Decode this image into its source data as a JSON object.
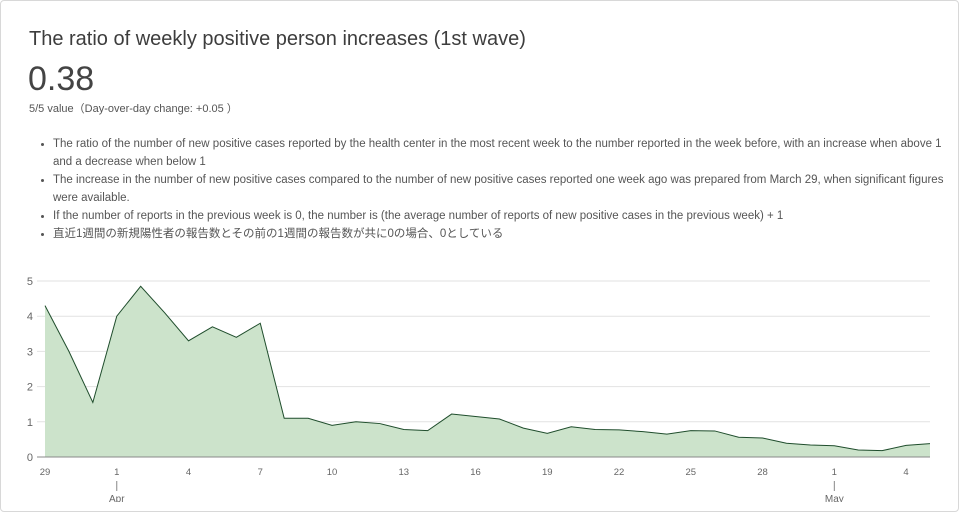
{
  "header": {
    "title": "The ratio of weekly positive person increases (1st wave)",
    "value": "0.38",
    "value_sub": "5/5 value（Day-over-day change: +0.05 ）"
  },
  "notes": [
    "The ratio of the number of new positive cases reported by the health center in the most recent week to the number reported in the week before, with an increase when above 1 and a decrease when below 1",
    "The increase in the number of new positive cases compared to the number of new positive cases reported one week ago was prepared from March 29, when significant figures were available.",
    "If the number of reports in the previous week is 0, the number is (the average number of reports of new positive cases in the previous week) + 1",
    "直近1週間の新規陽性者の報告数とその前の1週間の報告数が共に0の場合、0としている"
  ],
  "chart_data": {
    "type": "area",
    "x_start": "2020-03-29",
    "x": [
      "3/29",
      "3/30",
      "3/31",
      "4/1",
      "4/2",
      "4/3",
      "4/4",
      "4/5",
      "4/6",
      "4/7",
      "4/8",
      "4/9",
      "4/10",
      "4/11",
      "4/12",
      "4/13",
      "4/14",
      "4/15",
      "4/16",
      "4/17",
      "4/18",
      "4/19",
      "4/20",
      "4/21",
      "4/22",
      "4/23",
      "4/24",
      "4/25",
      "4/26",
      "4/27",
      "4/28",
      "4/29",
      "4/30",
      "5/1",
      "5/2",
      "5/3",
      "5/4",
      "5/5"
    ],
    "values": [
      4.3,
      3.0,
      1.55,
      4.0,
      4.85,
      4.1,
      3.3,
      3.7,
      3.4,
      3.8,
      1.1,
      1.1,
      0.9,
      1.0,
      0.95,
      0.78,
      0.75,
      1.22,
      1.15,
      1.08,
      0.82,
      0.67,
      0.86,
      0.78,
      0.77,
      0.72,
      0.65,
      0.75,
      0.74,
      0.56,
      0.54,
      0.39,
      0.34,
      0.32,
      0.2,
      0.18,
      0.33,
      0.38
    ],
    "x_tick_labels": [
      "29",
      "1",
      "4",
      "7",
      "10",
      "13",
      "16",
      "19",
      "22",
      "25",
      "28",
      "1",
      "4"
    ],
    "x_tick_positions": [
      "3/29",
      "4/1",
      "4/4",
      "4/7",
      "4/10",
      "4/13",
      "4/16",
      "4/19",
      "4/22",
      "4/25",
      "4/28",
      "5/1",
      "5/4"
    ],
    "month_labels": [
      {
        "label": "Apr",
        "at": "4/1"
      },
      {
        "label": "May",
        "at": "5/1"
      }
    ],
    "y_ticks": [
      0,
      1,
      2,
      3,
      4,
      5
    ],
    "ylim": [
      0,
      5
    ],
    "grid": true,
    "colors": {
      "fill": "#cce3cb",
      "line": "#1f4d2c",
      "grid": "#e2e2e2",
      "axis": "#888888"
    }
  }
}
